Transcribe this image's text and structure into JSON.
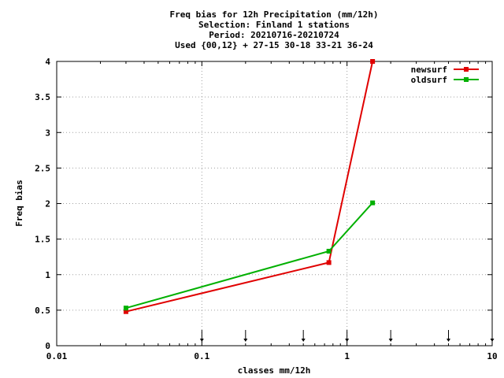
{
  "chart_data": {
    "type": "line",
    "title_lines": [
      "Freq bias  for 12h Precipitation (mm/12h)",
      "Selection: Finland      1 stations",
      "Period: 20210716-20210724",
      "Used {00,12} + 27-15 30-18 33-21 36-24"
    ],
    "xlabel": "classes mm/12h",
    "ylabel": "Freq bias",
    "x_scale": "log",
    "xlim": [
      0.01,
      10
    ],
    "ylim": [
      0,
      4
    ],
    "x_ticks": [
      0.01,
      0.1,
      1,
      10
    ],
    "x_tick_labels": [
      "0.01",
      "0.1",
      "1",
      "10"
    ],
    "y_ticks": [
      0,
      0.5,
      1,
      1.5,
      2,
      2.5,
      3,
      3.5,
      4
    ],
    "y_tick_labels": [
      "0",
      "0.5",
      "1",
      "1.5",
      "2",
      "2.5",
      "3",
      "3.5",
      "4"
    ],
    "grid": true,
    "legend_position": "top-right",
    "class_markers": [
      0.1,
      0.2,
      0.5,
      1,
      2,
      5,
      10
    ],
    "series": [
      {
        "name": "newsurf",
        "color": "#e00000",
        "x": [
          0.03,
          0.75,
          1.5
        ],
        "y": [
          0.48,
          1.17,
          4.0
        ]
      },
      {
        "name": "oldsurf",
        "color": "#00b000",
        "x": [
          0.03,
          0.75,
          1.5
        ],
        "y": [
          0.53,
          1.33,
          2.01
        ]
      }
    ]
  }
}
